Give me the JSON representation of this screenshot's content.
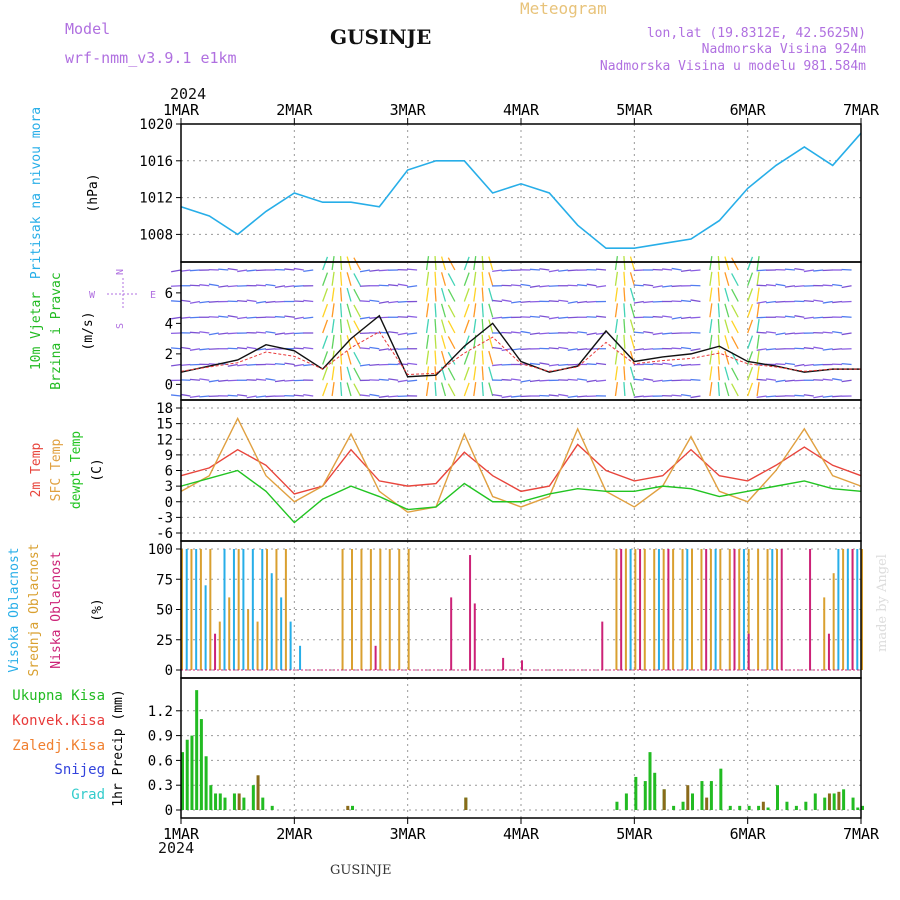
{
  "header": {
    "model_label": "Model",
    "model_name": "wrf-nmm_v3.9.1 e1km",
    "location": "GUSINJE",
    "meteogram": "Meteogram",
    "coords": "lon,lat (19.8312E, 42.5625N)",
    "elevation": "Nadmorska Visina 924m",
    "model_elevation": "Nadmorska Visina u modelu 981.584m",
    "year_top": "2024",
    "year_bottom": "2024",
    "footer_location": "GUSINJE",
    "credit": "made by Angel"
  },
  "colors": {
    "pressure": "#27aee8",
    "temp2m": "#e8453c",
    "sfc": "#e0a040",
    "dew": "#22c422",
    "high_cloud": "#27aee8",
    "mid_cloud": "#d9a030",
    "low_cloud": "#cc2277",
    "rain": "#22bb22",
    "conv": "#e83a3a",
    "frz": "#f08030",
    "snow": "#3344dd",
    "grad": "#33cccc",
    "wind_label": "#22bb22",
    "compass": "#b070e0"
  },
  "panel_labels": {
    "pressure": [
      "Pritisak na nivou mora"
    ],
    "pressure_unit": "(hPa)",
    "wind": [
      "10m Vjetar",
      "Brzina i Pravac"
    ],
    "wind_unit": "(m/s)",
    "temp": [
      "2m Temp",
      "SFC Temp",
      "dewpt Temp"
    ],
    "temp_unit": "(C)",
    "cloud": [
      "Visoka Oblacnost",
      "Srednja Oblacnost",
      "Niska Oblacnost"
    ],
    "cloud_unit": "(%)",
    "precip": [
      "Ukupna Kisa",
      "Konvek.Kisa",
      "Zaledj.Kisa",
      "Snijeg",
      "Grad"
    ],
    "precip_unit": "1hr Precip (mm)",
    "compass": [
      "W",
      "E",
      "N",
      "S"
    ]
  },
  "chart_data": [
    {
      "type": "line",
      "name": "pressure",
      "days": [
        "1MAR",
        "2MAR",
        "3MAR",
        "4MAR",
        "5MAR",
        "6MAR",
        "7MAR"
      ],
      "x_hours": [
        0,
        6,
        12,
        18,
        24,
        30,
        36,
        42,
        48,
        54,
        60,
        66,
        72,
        78,
        84,
        90,
        96,
        102,
        108,
        114,
        120,
        126,
        132,
        138,
        144
      ],
      "ylim": [
        1005,
        1020
      ],
      "yticks": [
        1008,
        1012,
        1016,
        1020
      ],
      "ylabel": "(hPa)",
      "series": [
        {
          "color": "pressure",
          "values": [
            1011,
            1010,
            1008,
            1010.5,
            1012.5,
            1011.5,
            1011.5,
            1011,
            1015,
            1016,
            1016,
            1012.5,
            1013.5,
            1012.5,
            1009,
            1006.5,
            1006.5,
            1007,
            1007.5,
            1009.5,
            1013,
            1015.5,
            1017.5,
            1015.5,
            1019
          ]
        }
      ]
    },
    {
      "type": "line",
      "name": "wind",
      "x_hours": [
        0,
        6,
        12,
        18,
        24,
        30,
        36,
        42,
        48,
        54,
        60,
        66,
        72,
        78,
        84,
        90,
        96,
        102,
        108,
        114,
        120,
        126,
        132,
        138,
        144
      ],
      "ylim": [
        -0.5,
        7.5
      ],
      "yticks": [
        0,
        2,
        4,
        6
      ],
      "ylabel": "(m/s)",
      "series": [
        {
          "color": "#111111",
          "values": [
            0.8,
            1.2,
            1.6,
            2.6,
            2.2,
            1.0,
            3.0,
            4.5,
            0.5,
            0.6,
            2.5,
            4.0,
            1.5,
            0.8,
            1.2,
            3.5,
            1.5,
            1.8,
            2.0,
            2.5,
            1.5,
            1.2,
            0.8,
            1.0,
            1.0
          ]
        }
      ]
    },
    {
      "type": "line",
      "name": "temperature",
      "x_hours": [
        0,
        6,
        12,
        18,
        24,
        30,
        36,
        42,
        48,
        54,
        60,
        66,
        72,
        78,
        84,
        90,
        96,
        102,
        108,
        114,
        120,
        126,
        132,
        138,
        144
      ],
      "ylim": [
        -6,
        18
      ],
      "yticks": [
        -6,
        -3,
        0,
        3,
        6,
        9,
        12,
        15,
        18
      ],
      "ylabel": "(C)",
      "series": [
        {
          "color": "temp2m",
          "values": [
            5,
            6.5,
            10,
            7,
            1.5,
            3,
            10,
            4,
            3,
            3.5,
            9.5,
            5,
            2,
            3,
            11,
            6,
            4,
            5,
            10,
            5,
            4,
            7,
            10.5,
            7,
            5
          ]
        },
        {
          "color": "sfc",
          "values": [
            2,
            5,
            16,
            5,
            0,
            3,
            13,
            2,
            -2,
            -1,
            13,
            1,
            -1,
            1,
            14,
            2,
            -1,
            3,
            12.5,
            2,
            0,
            6,
            14,
            5,
            3
          ]
        },
        {
          "color": "dew",
          "values": [
            3,
            4.5,
            6,
            2,
            -4,
            0.5,
            3,
            1,
            -1.5,
            -1,
            3.5,
            0,
            0,
            1.5,
            2.5,
            2,
            2,
            3,
            2.5,
            1,
            2,
            3,
            4,
            2.5,
            2
          ]
        }
      ]
    },
    {
      "type": "bar",
      "name": "cloud_cover",
      "ylim": [
        0,
        100
      ],
      "yticks": [
        0,
        25,
        50,
        75,
        100
      ],
      "ylabel": "(%)",
      "series": [
        {
          "color": "mid_cloud",
          "hours": [
            0,
            2,
            4,
            6,
            8,
            10,
            12,
            14,
            16,
            18,
            20,
            22,
            34,
            36,
            38,
            40,
            42,
            44,
            46,
            48,
            92,
            94,
            96,
            98,
            100,
            102,
            104,
            106,
            108,
            110,
            112,
            114,
            116,
            118,
            120,
            122,
            124,
            126,
            136,
            138,
            140,
            142,
            144
          ],
          "values": [
            100,
            100,
            100,
            100,
            40,
            60,
            100,
            50,
            40,
            100,
            100,
            100,
            100,
            100,
            100,
            100,
            100,
            100,
            100,
            100,
            100,
            100,
            100,
            100,
            100,
            100,
            100,
            100,
            100,
            100,
            100,
            100,
            100,
            100,
            100,
            100,
            100,
            100,
            60,
            80,
            100,
            100,
            100
          ]
        },
        {
          "color": "high_cloud",
          "hours": [
            1,
            3,
            5,
            9,
            11,
            13,
            15,
            17,
            19,
            21,
            23,
            25,
            95,
            101,
            107,
            113,
            119,
            125,
            139,
            141,
            143
          ],
          "values": [
            100,
            100,
            70,
            100,
            100,
            100,
            100,
            100,
            80,
            60,
            40,
            20,
            100,
            100,
            100,
            100,
            100,
            100,
            100,
            100,
            100
          ]
        },
        {
          "color": "low_cloud",
          "hours": [
            7,
            41,
            57,
            61,
            62,
            68,
            72,
            89,
            93,
            97,
            103,
            111,
            117,
            120,
            127,
            133,
            137,
            142
          ],
          "values": [
            30,
            20,
            60,
            95,
            55,
            10,
            8,
            40,
            100,
            100,
            100,
            100,
            100,
            30,
            100,
            100,
            30,
            100
          ]
        }
      ]
    },
    {
      "type": "bar",
      "name": "precipitation",
      "ylim": [
        0,
        1.5
      ],
      "yticks": [
        0,
        0.3,
        0.6,
        0.9,
        1.2
      ],
      "ylabel": "1hr Precip (mm)",
      "series": [
        {
          "color": "rain",
          "hours": [
            0,
            1,
            2,
            3,
            4,
            5,
            6,
            7,
            8,
            9,
            11,
            13,
            15,
            17,
            19,
            36,
            60,
            92,
            94,
            96,
            98,
            99,
            100,
            102,
            104,
            106,
            108,
            110,
            112,
            114,
            116,
            118,
            120,
            122,
            124,
            126,
            128,
            130,
            132,
            134,
            136,
            138,
            140,
            142,
            143,
            144
          ],
          "values": [
            0.7,
            0.85,
            0.9,
            1.45,
            1.1,
            0.65,
            0.3,
            0.2,
            0.2,
            0.15,
            0.2,
            0.15,
            0.3,
            0.15,
            0.05,
            0.05,
            0.15,
            0.1,
            0.2,
            0.4,
            0.35,
            0.7,
            0.45,
            0.25,
            0.05,
            0.1,
            0.2,
            0.35,
            0.35,
            0.5,
            0.05,
            0.05,
            0.05,
            0.05,
            0.03,
            0.3,
            0.1,
            0.05,
            0.1,
            0.2,
            0.15,
            0.2,
            0.25,
            0.15,
            0.03,
            0.05
          ]
        },
        {
          "color": "#8a6a1a",
          "hours": [
            12,
            16,
            35,
            60,
            102,
            107,
            111,
            123,
            137,
            139
          ],
          "values": [
            0.2,
            0.42,
            0.05,
            0.15,
            0.25,
            0.3,
            0.15,
            0.1,
            0.2,
            0.22
          ]
        }
      ]
    }
  ]
}
